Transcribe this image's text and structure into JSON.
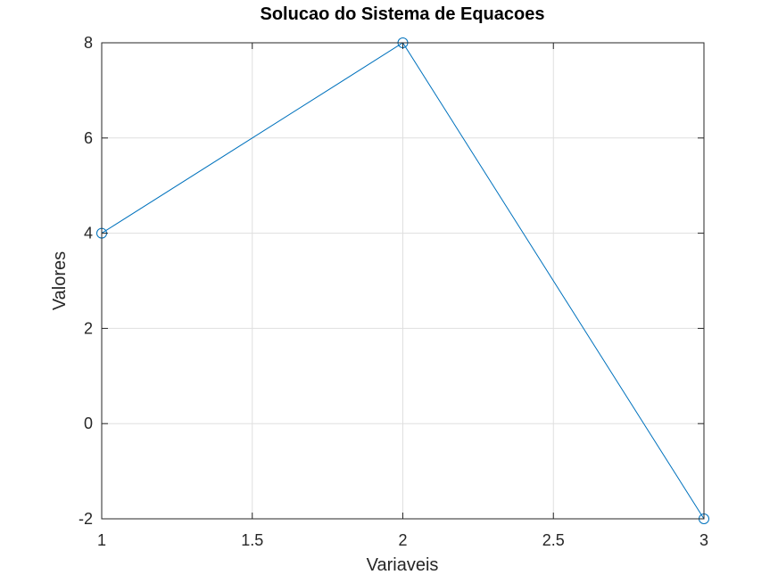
{
  "chart_data": {
    "type": "line",
    "title": "Solucao do Sistema de Equacoes",
    "xlabel": "Variaveis",
    "ylabel": "Valores",
    "xlim": [
      1,
      3
    ],
    "ylim": [
      -2,
      8
    ],
    "xticks": [
      "1",
      "1.5",
      "2",
      "2.5",
      "3"
    ],
    "yticks": [
      "-2",
      "0",
      "2",
      "4",
      "6",
      "8"
    ],
    "grid": true,
    "marker": "circle",
    "series": [
      {
        "x": [
          1,
          2,
          3
        ],
        "values": [
          4,
          8,
          -2
        ],
        "color": "#0072BD"
      }
    ]
  }
}
